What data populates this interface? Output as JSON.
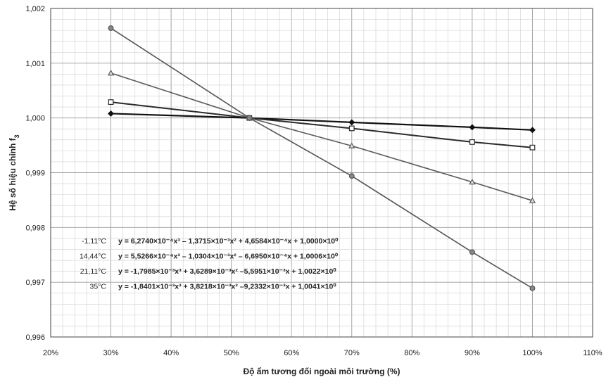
{
  "chart_data": {
    "type": "line",
    "xlabel": "Độ ẩm tương đối ngoài môi trường (%)",
    "ylabel": "Hệ số hiệu chỉnh f",
    "ylabel_sub": "3",
    "xlim": [
      20,
      110
    ],
    "ylim": [
      0.996,
      1.002
    ],
    "x_ticks": [
      20,
      30,
      40,
      50,
      60,
      70,
      80,
      90,
      100,
      110
    ],
    "x_tick_labels": [
      "20%",
      "30%",
      "40%",
      "50%",
      "60%",
      "70%",
      "80%",
      "90%",
      "100%",
      "110%"
    ],
    "y_ticks": [
      0.996,
      0.997,
      0.998,
      0.999,
      1.0,
      1.001,
      1.002
    ],
    "y_tick_labels": [
      "0,996",
      "0,997",
      "0,998",
      "0,999",
      "1,000",
      "1,001",
      "1,002"
    ],
    "grid": true,
    "series": [
      {
        "name": "-1,11°C",
        "marker": "diamond",
        "color": "#111111",
        "x": [
          30,
          53,
          70,
          90,
          100
        ],
        "y": [
          1.00008,
          1.0,
          0.99992,
          0.99983,
          0.99978
        ],
        "equation": "y = 6,2740×10⁻⁴x³ – 1,3715×10⁻³x² + 4,6584×10⁻⁴x + 1,0000×10⁰"
      },
      {
        "name": "14,44°C",
        "marker": "square",
        "color": "#2a2a2a",
        "x": [
          30,
          53,
          70,
          90,
          100
        ],
        "y": [
          1.00029,
          1.0,
          0.99981,
          0.99956,
          0.99946
        ],
        "equation": "y = 5,5266×10⁻⁴x³ – 1,0304×10⁻³x² – 6,6950×10⁻⁴x + 1,0006×10⁰"
      },
      {
        "name": "21,11°C",
        "marker": "triangle",
        "color": "#5a5a5a",
        "x": [
          30,
          53,
          70,
          90,
          100
        ],
        "y": [
          1.00082,
          1.0,
          0.99949,
          0.99883,
          0.99849
        ],
        "equation": "y = -1,7985×10⁻³x³ + 3,6289×10⁻³x² –5,5951×10⁻³x + 1,0022×10⁰"
      },
      {
        "name": "35°C",
        "marker": "circle",
        "color": "#555555",
        "x": [
          30,
          53,
          70,
          90,
          100
        ],
        "y": [
          1.00164,
          1.0,
          0.99894,
          0.99755,
          0.99689
        ],
        "equation": "y = -1,8401×10⁻³x³ + 3,8218×10⁻³x² –9,2332×10⁻³x + 1,0041×10⁰"
      }
    ]
  }
}
